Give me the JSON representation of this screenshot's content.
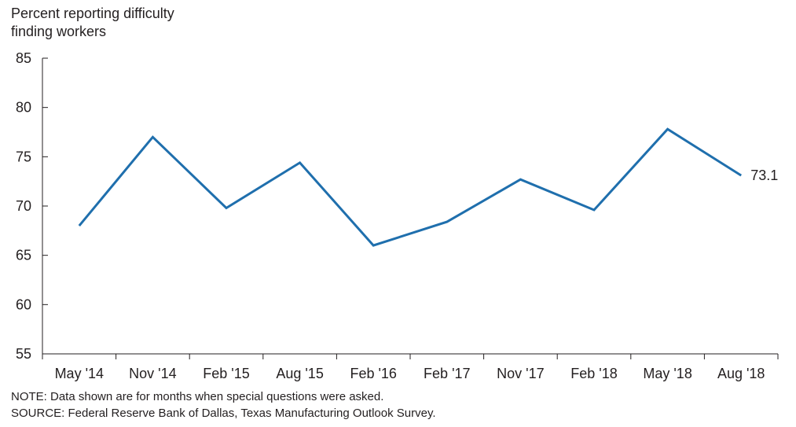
{
  "chart_data": {
    "type": "line",
    "ylabel_line1": "Percent reporting difficulty",
    "ylabel_line2": "finding workers",
    "categories": [
      "May '14",
      "Nov '14",
      "Feb '15",
      "Aug '15",
      "Feb '16",
      "Feb '17",
      "Nov '17",
      "Feb '18",
      "May '18",
      "Aug '18"
    ],
    "series": [
      {
        "values": [
          68.0,
          77.0,
          69.8,
          74.4,
          66.0,
          68.4,
          72.7,
          69.6,
          77.8,
          73.1
        ]
      }
    ],
    "ylim": [
      55,
      85
    ],
    "yticks": [
      "55",
      "60",
      "65",
      "70",
      "75",
      "80",
      "85"
    ],
    "end_label": "73.1",
    "grid": false,
    "line_color": "#1f6fad",
    "axis_color": "#231f20"
  },
  "notes": {
    "note": "NOTE: Data shown are for months when special questions were asked.",
    "source": "SOURCE: Federal Reserve Bank of Dallas, Texas Manufacturing Outlook Survey."
  }
}
